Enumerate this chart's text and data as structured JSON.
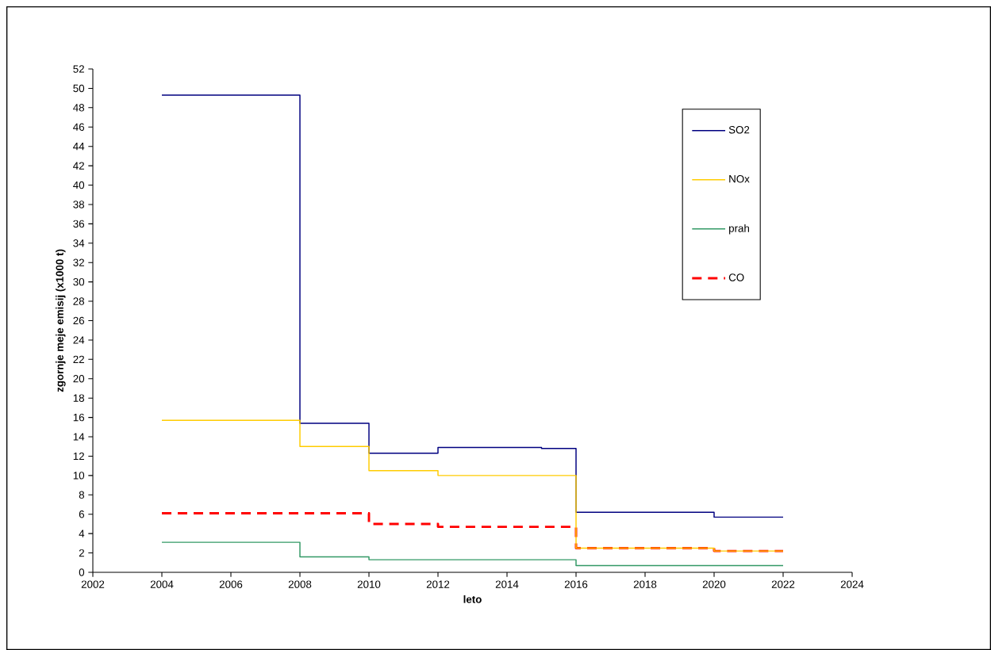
{
  "chart_data": {
    "type": "step",
    "xlabel": "leto",
    "ylabel": "zgornje meje emisij (x1000 t)",
    "xlim": [
      2002,
      2024
    ],
    "xticks": [
      2002,
      2004,
      2006,
      2008,
      2010,
      2012,
      2014,
      2016,
      2018,
      2020,
      2022,
      2024
    ],
    "ylim": [
      0,
      52
    ],
    "yticks": [
      0,
      2,
      4,
      6,
      8,
      10,
      12,
      14,
      16,
      18,
      20,
      22,
      24,
      26,
      28,
      30,
      32,
      34,
      36,
      38,
      40,
      42,
      44,
      46,
      48,
      50,
      52
    ],
    "legend": "top right",
    "series": [
      {
        "name": "SO2",
        "color": "#000080",
        "x": [
          2004,
          2008,
          2010,
          2012,
          2015,
          2016,
          2020,
          2022
        ],
        "values": [
          49.3,
          15.4,
          12.3,
          12.9,
          12.8,
          6.2,
          5.7,
          5.7
        ]
      },
      {
        "name": "NOx",
        "color": "#ffcc00",
        "x": [
          2004,
          2008,
          2010,
          2012,
          2016,
          2020,
          2022
        ],
        "values": [
          15.7,
          13.0,
          10.5,
          10.0,
          2.5,
          2.2,
          2.2
        ]
      },
      {
        "name": "prah",
        "color": "#339966",
        "x": [
          2004,
          2008,
          2010,
          2016,
          2022
        ],
        "values": [
          3.1,
          1.6,
          1.3,
          0.7,
          0.7
        ]
      },
      {
        "name": "CO",
        "color": "#ff0000",
        "line_style": "dashed",
        "x": [
          2004,
          2010,
          2012,
          2016,
          2020,
          2022
        ],
        "values": [
          6.1,
          5.0,
          4.7,
          2.5,
          2.2,
          2.2
        ]
      }
    ]
  }
}
